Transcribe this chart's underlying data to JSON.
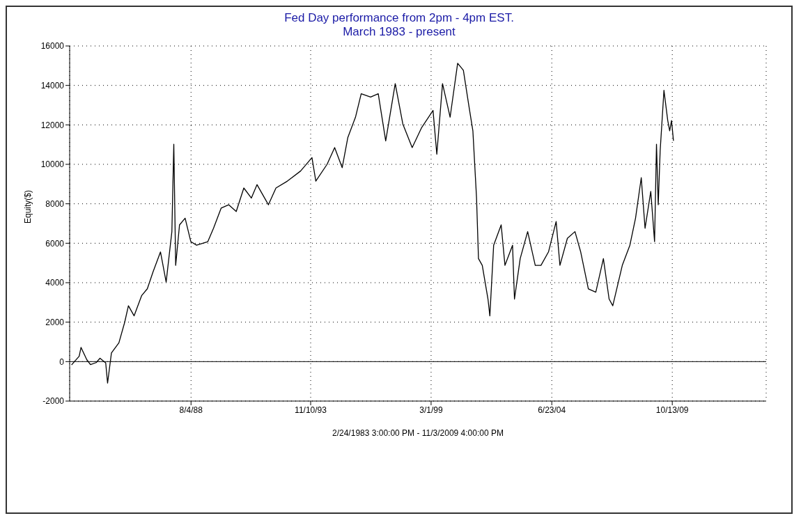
{
  "chart_data": {
    "type": "line",
    "title": "Fed Day performance from 2pm - 4pm EST.",
    "subtitle": "March 1983 - present",
    "xlabel": "2/24/1983 3:00:00 PM - 11/3/2009 4:00:00 PM",
    "ylabel": "Equity($)",
    "xlim": [
      "1983-04",
      "2013-12"
    ],
    "xticks": [
      {
        "value": "1988-08-04",
        "label": "8/4/88"
      },
      {
        "value": "1993-11-10",
        "label": "11/10/93"
      },
      {
        "value": "1999-03-01",
        "label": "3/1/99"
      },
      {
        "value": "2004-06-23",
        "label": "6/23/04"
      },
      {
        "value": "2009-10-13",
        "label": "10/13/09"
      }
    ],
    "ylim": [
      -2000,
      16000
    ],
    "yticks": [
      -2000,
      0,
      2000,
      4000,
      6000,
      8000,
      10000,
      12000,
      14000,
      16000
    ],
    "grid": true,
    "marker": "none",
    "line_style": "solid",
    "ref_lines": [
      {
        "axis": "y",
        "value": 0,
        "color": "#000000"
      }
    ],
    "x": [
      "1983-05",
      "1983-09",
      "1983-10",
      "1984-01",
      "1984-03",
      "1984-06",
      "1984-08",
      "1984-11",
      "1984-12",
      "1985-02",
      "1985-06",
      "1985-09",
      "1985-11",
      "1986-02",
      "1986-06",
      "1986-09",
      "1986-12",
      "1987-04",
      "1987-07",
      "1987-10",
      "1987-11",
      "1987-12",
      "1988-02",
      "1988-05",
      "1988-08",
      "1988-11",
      "1989-05",
      "1989-08",
      "1989-12",
      "1990-04",
      "1990-08",
      "1990-12",
      "1991-04",
      "1991-07",
      "1992-01",
      "1992-05",
      "1992-11",
      "1993-06",
      "1993-12",
      "1994-02",
      "1994-08",
      "1994-12",
      "1995-04",
      "1995-07",
      "1995-11",
      "1996-02",
      "1996-07",
      "1996-11",
      "1997-03",
      "1997-08",
      "1997-12",
      "1998-05",
      "1998-10",
      "1999-04",
      "1999-06",
      "1999-09",
      "2000-01",
      "2000-05",
      "2000-08",
      "2000-11",
      "2001-01",
      "2001-03",
      "2001-04",
      "2001-06",
      "2001-09",
      "2001-10",
      "2001-12",
      "2002-04",
      "2002-06",
      "2002-10",
      "2002-11",
      "2003-02",
      "2003-06",
      "2003-10",
      "2004-01",
      "2004-05",
      "2004-09",
      "2004-11",
      "2005-03",
      "2005-07",
      "2005-10",
      "2006-02",
      "2006-06",
      "2006-10",
      "2007-01",
      "2007-03",
      "2007-08",
      "2007-12",
      "2008-03",
      "2008-06",
      "2008-08",
      "2008-11",
      "2009-01",
      "2009-02",
      "2009-03",
      "2009-04",
      "2009-06",
      "2009-08",
      "2009-09",
      "2009-10",
      "2009-11"
    ],
    "series": [
      {
        "color": "#000000",
        "values": [
          -170,
          270,
          720,
          100,
          -150,
          -50,
          170,
          -70,
          -1090,
          440,
          950,
          1980,
          2830,
          2320,
          3340,
          3690,
          4540,
          5560,
          4030,
          6590,
          11020,
          4880,
          6930,
          7270,
          6080,
          5900,
          6080,
          6760,
          7780,
          7950,
          7610,
          8800,
          8290,
          8970,
          7950,
          8800,
          9150,
          9660,
          10340,
          9150,
          10000,
          10850,
          9830,
          11360,
          12390,
          13580,
          13410,
          13580,
          11190,
          14090,
          12050,
          10850,
          11870,
          12730,
          10510,
          14090,
          12390,
          15120,
          14770,
          12900,
          11700,
          8290,
          5220,
          4880,
          3170,
          2320,
          5900,
          6930,
          4880,
          5900,
          3170,
          5220,
          6590,
          4880,
          4880,
          5560,
          7100,
          4880,
          6250,
          6590,
          5560,
          3690,
          3520,
          5220,
          3170,
          2830,
          4880,
          5900,
          7270,
          9320,
          6760,
          8630,
          6080,
          11020,
          7950,
          10680,
          13750,
          12220,
          11700,
          12220,
          11190
        ]
      }
    ]
  }
}
